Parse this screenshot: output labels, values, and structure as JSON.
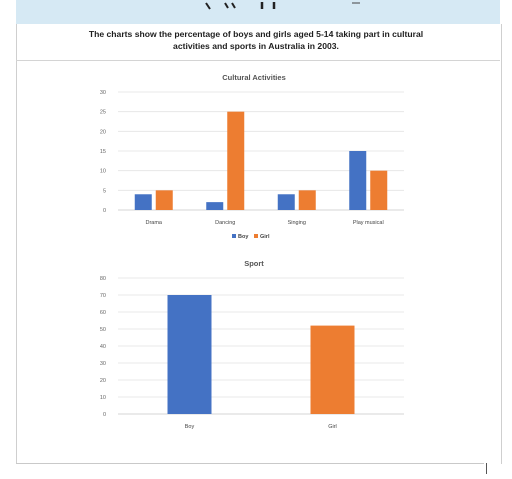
{
  "heading": {
    "line1": "The charts show the percentage of boys and girls aged 5-14 taking part in cultural",
    "line2": "activities and sports in Australia in 2003."
  },
  "colors": {
    "boy": "#4472c4",
    "girl": "#ed7d31",
    "grid": "#e3e3e3",
    "band": "#d6e9f4"
  },
  "chart_data": [
    {
      "type": "bar",
      "title": "Cultural Activities",
      "categories": [
        "Drama",
        "Dancing",
        "Singing",
        "Play musical"
      ],
      "series": [
        {
          "name": "Boy",
          "values": [
            4,
            2,
            4,
            15
          ]
        },
        {
          "name": "Girl",
          "values": [
            5,
            25,
            5,
            10
          ]
        }
      ],
      "ylim": [
        0,
        30
      ],
      "yticks": [
        0,
        5,
        10,
        15,
        20,
        25,
        30
      ],
      "grid": true,
      "legend": "bottom"
    },
    {
      "type": "bar",
      "title": "Sport",
      "categories": [
        "Boy",
        "Girl"
      ],
      "values": [
        70,
        52
      ],
      "ylim": [
        0,
        80
      ],
      "yticks": [
        0,
        10,
        20,
        30,
        40,
        50,
        60,
        70,
        80
      ],
      "grid": true
    }
  ]
}
